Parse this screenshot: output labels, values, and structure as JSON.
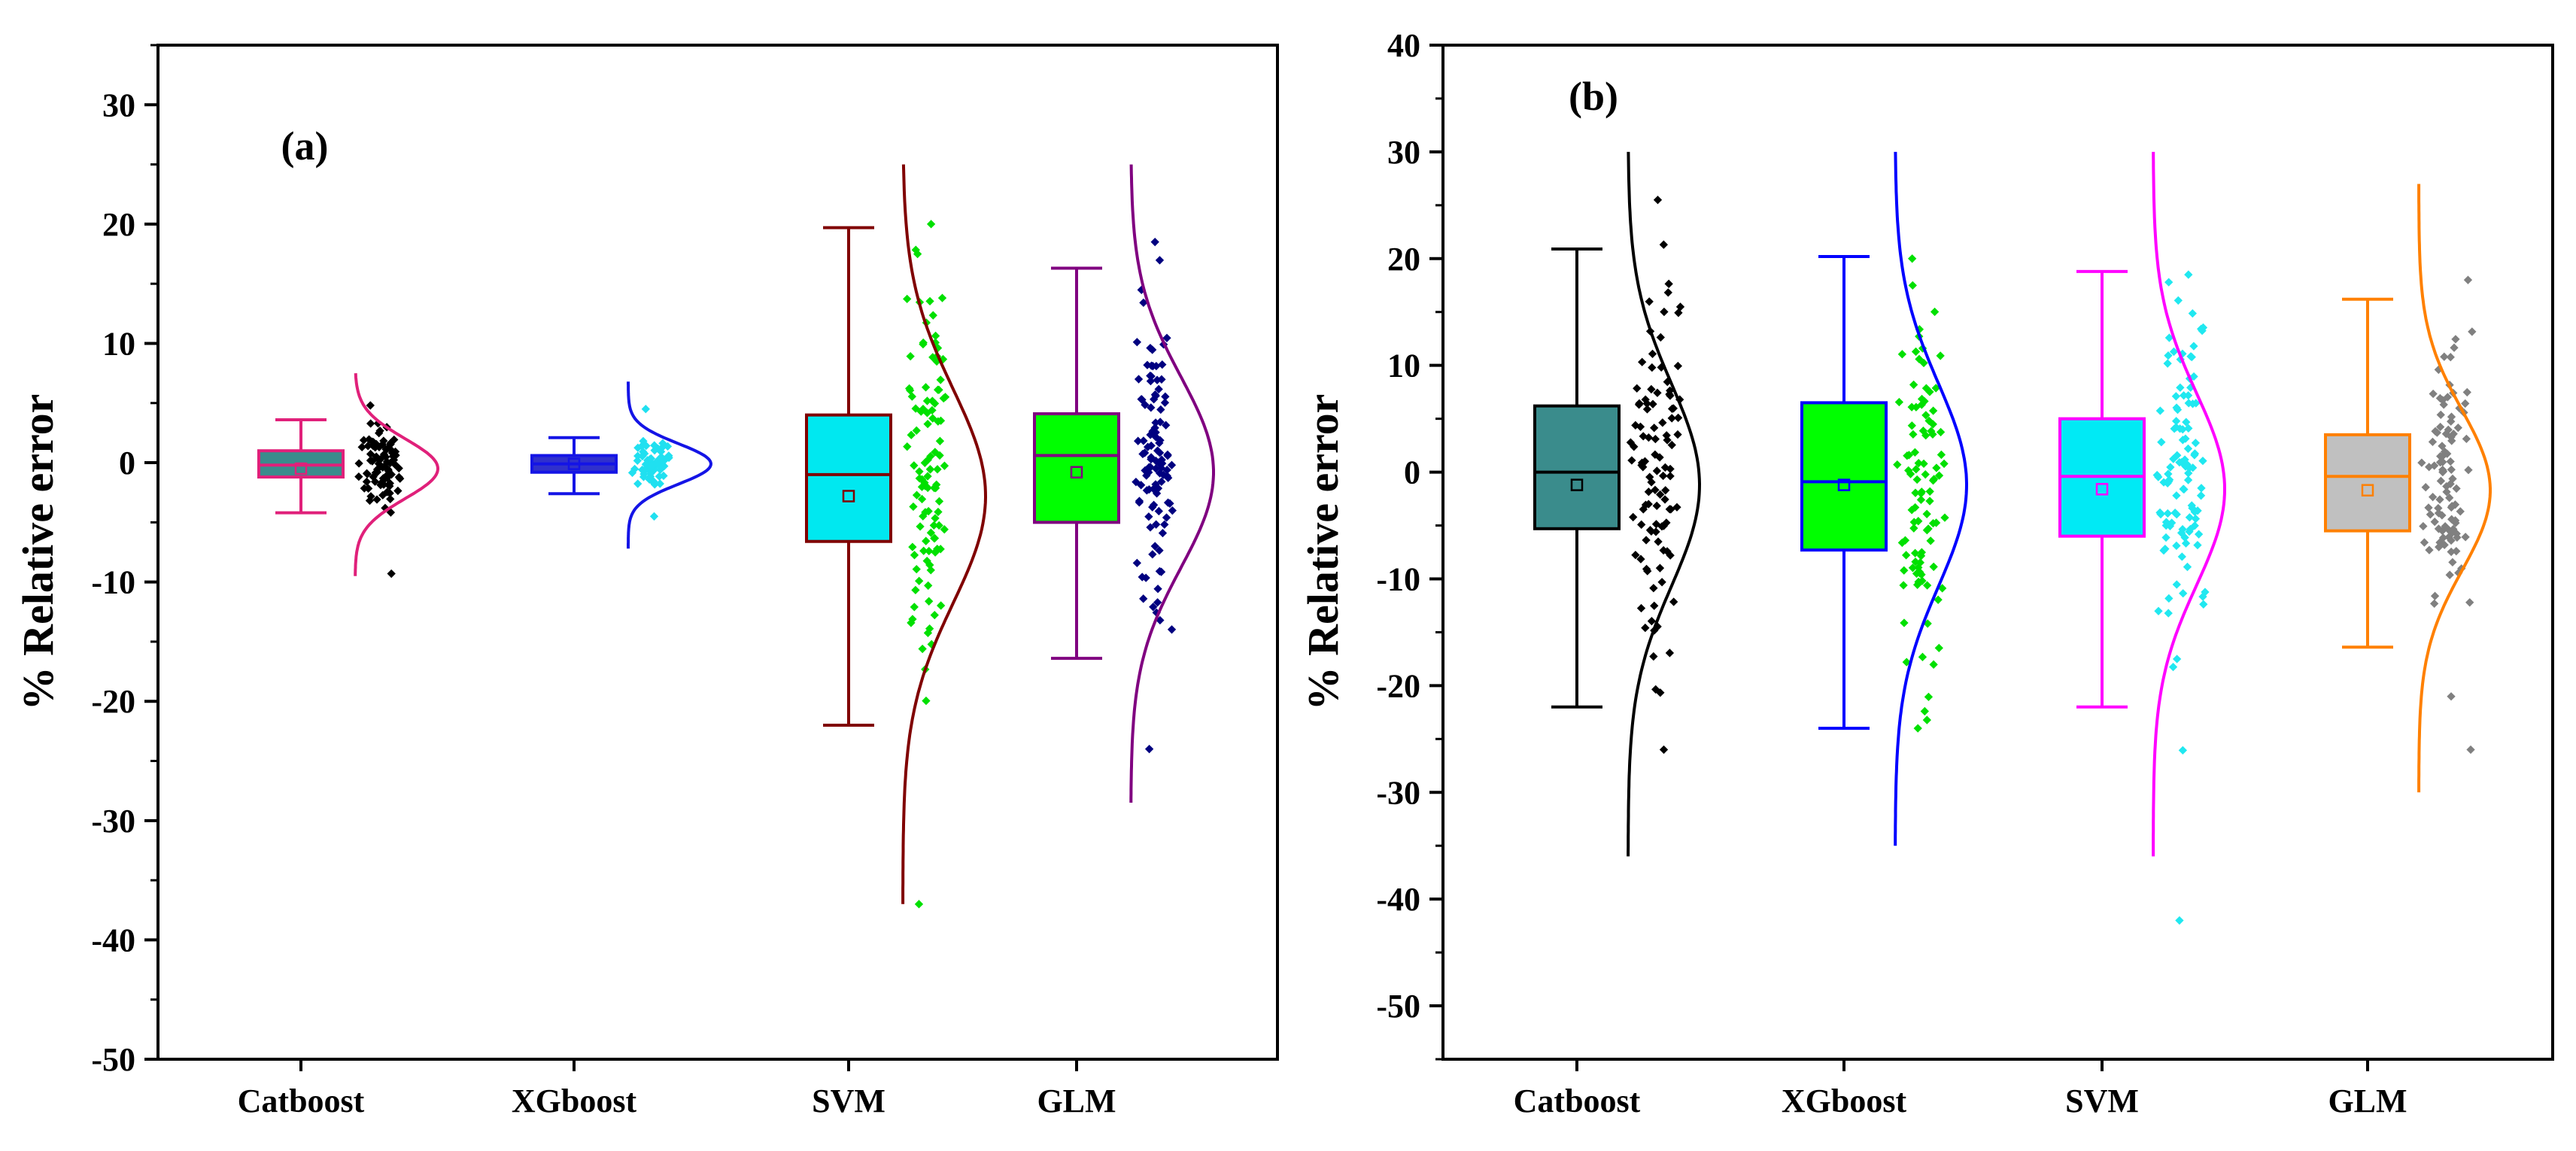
{
  "chart_data": [
    {
      "type": "box",
      "panel_label": "(a)",
      "ylabel": "% Relative error",
      "ylim": [
        -50,
        35
      ],
      "yticks": [
        -50,
        -40,
        -30,
        -20,
        -10,
        0,
        10,
        20,
        30
      ],
      "categories": [
        "Catboost",
        "XGboost",
        "SVM",
        "GLM"
      ],
      "series": [
        {
          "name": "Catboost",
          "whisker_low": -4.2,
          "q1": -1.2,
          "median": -0.2,
          "q3": 1.0,
          "whisker_high": 3.6,
          "mean": -0.5,
          "curve_range": [
            -9.5,
            7.5
          ],
          "points_range": [
            -9.3,
            4.8
          ],
          "curve_sd": 2.5,
          "n_points": 85,
          "box_color": "#3a8c8c",
          "line_color": "#e0207a",
          "point_color": "#000000",
          "curve_color": "#e0207a"
        },
        {
          "name": "XGboost",
          "whisker_low": -2.6,
          "q1": -0.8,
          "median": -0.1,
          "q3": 0.6,
          "whisker_high": 2.1,
          "mean": -0.1,
          "curve_range": [
            -7.2,
            6.8
          ],
          "points_range": [
            -4.5,
            4.5
          ],
          "curve_sd": 1.7,
          "n_points": 60,
          "box_color": "#3030cc",
          "line_color": "#1414e6",
          "point_color": "#20e0f0",
          "curve_color": "#1414e6"
        },
        {
          "name": "SVM",
          "whisker_low": -22.0,
          "q1": -6.6,
          "median": -1.0,
          "q3": 4.0,
          "whisker_high": 19.7,
          "mean": -2.8,
          "curve_range": [
            -37.0,
            25.0
          ],
          "points_range": [
            -37.0,
            20.0
          ],
          "curve_sd": 9.0,
          "n_points": 110,
          "box_color": "#00e8f0",
          "line_color": "#800000",
          "point_color": "#00e000",
          "curve_color": "#800000"
        },
        {
          "name": "GLM",
          "whisker_low": -16.4,
          "q1": -5.0,
          "median": 0.6,
          "q3": 4.1,
          "whisker_high": 16.3,
          "mean": -0.8,
          "curve_range": [
            -28.5,
            25.0
          ],
          "points_range": [
            -24.0,
            18.5
          ],
          "curve_sd": 8.0,
          "n_points": 110,
          "box_color": "#00ff00",
          "line_color": "#800080",
          "point_color": "#000080",
          "curve_color": "#800080"
        }
      ]
    },
    {
      "type": "box",
      "panel_label": "(b)",
      "ylabel": "% Relative error",
      "ylim": [
        -55,
        40
      ],
      "yticks": [
        -50,
        -40,
        -30,
        -20,
        -10,
        0,
        10,
        20,
        30,
        40
      ],
      "categories": [
        "Catboost",
        "XGboost",
        "SVM",
        "GLM"
      ],
      "series": [
        {
          "name": "Catboost",
          "whisker_low": -22.0,
          "q1": -5.3,
          "median": 0.0,
          "q3": 6.2,
          "whisker_high": 20.9,
          "mean": -1.2,
          "curve_range": [
            -36.0,
            30.0
          ],
          "points_range": [
            -26.0,
            25.5
          ],
          "curve_sd": 9.5,
          "n_points": 105,
          "box_color": "#3a8c8c",
          "line_color": "#000000",
          "point_color": "#000000",
          "curve_color": "#000000"
        },
        {
          "name": "XGboost",
          "whisker_low": -24.0,
          "q1": -7.3,
          "median": -0.9,
          "q3": 6.5,
          "whisker_high": 20.2,
          "mean": -1.2,
          "curve_range": [
            -35.0,
            30.0
          ],
          "points_range": [
            -24.0,
            20.0
          ],
          "curve_sd": 9.5,
          "n_points": 100,
          "box_color": "#00ff00",
          "line_color": "#0000ff",
          "point_color": "#00e000",
          "curve_color": "#0000ff"
        },
        {
          "name": "SVM",
          "whisker_low": -22.0,
          "q1": -6.0,
          "median": -0.4,
          "q3": 5.0,
          "whisker_high": 18.8,
          "mean": -1.6,
          "curve_range": [
            -36.0,
            30.0
          ],
          "points_range": [
            -42.0,
            18.5
          ],
          "curve_sd": 9.0,
          "n_points": 110,
          "box_color": "#00eaf5",
          "line_color": "#ff00ff",
          "point_color": "#20e8f0",
          "curve_color": "#ff00ff"
        },
        {
          "name": "GLM",
          "whisker_low": -16.4,
          "q1": -5.5,
          "median": -0.4,
          "q3": 3.5,
          "whisker_high": 16.2,
          "mean": -1.7,
          "curve_range": [
            -30.0,
            27.0
          ],
          "points_range": [
            -26.0,
            18.0
          ],
          "curve_sd": 7.5,
          "n_points": 100,
          "box_color": "#c0c0c0",
          "line_color": "#ff8000",
          "point_color": "#808080",
          "curve_color": "#ff8000"
        }
      ]
    }
  ]
}
